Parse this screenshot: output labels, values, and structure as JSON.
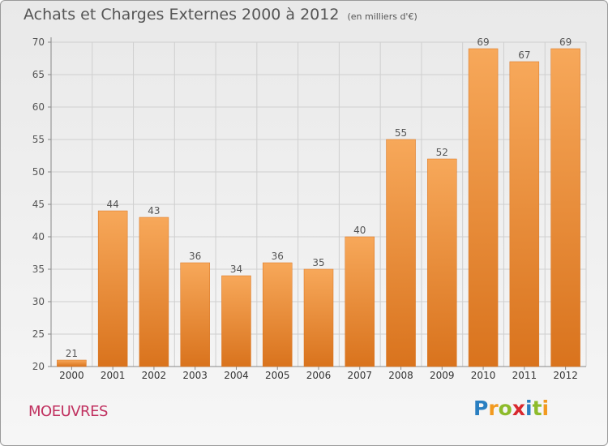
{
  "title": "Achats et Charges Externes 2000 à 2012",
  "unit_label": "(en milliers d'€)",
  "city": "MOEUVRES",
  "logo": {
    "letters": [
      "P",
      "r",
      "o",
      "x",
      "i",
      "t",
      "i"
    ],
    "colors": [
      "#2a7fc1",
      "#f29a1f",
      "#8dbb2b",
      "#d8282e",
      "#2a7fc1",
      "#8dbb2b",
      "#f29a1f"
    ]
  },
  "colors": {
    "bar": "#f0913a",
    "bar_light": "#f7a85a",
    "bar_dark": "#d9731d",
    "grid": "#cfcfcf"
  },
  "chart_data": {
    "type": "bar",
    "categories": [
      "2000",
      "2001",
      "2002",
      "2003",
      "2004",
      "2005",
      "2006",
      "2007",
      "2008",
      "2009",
      "2010",
      "2011",
      "2012"
    ],
    "values": [
      21,
      44,
      43,
      36,
      34,
      36,
      35,
      40,
      55,
      52,
      69,
      67,
      69
    ],
    "ylim": [
      20,
      70
    ],
    "yticks": [
      20,
      25,
      30,
      35,
      40,
      45,
      50,
      55,
      60,
      65,
      70
    ],
    "grid": true
  }
}
